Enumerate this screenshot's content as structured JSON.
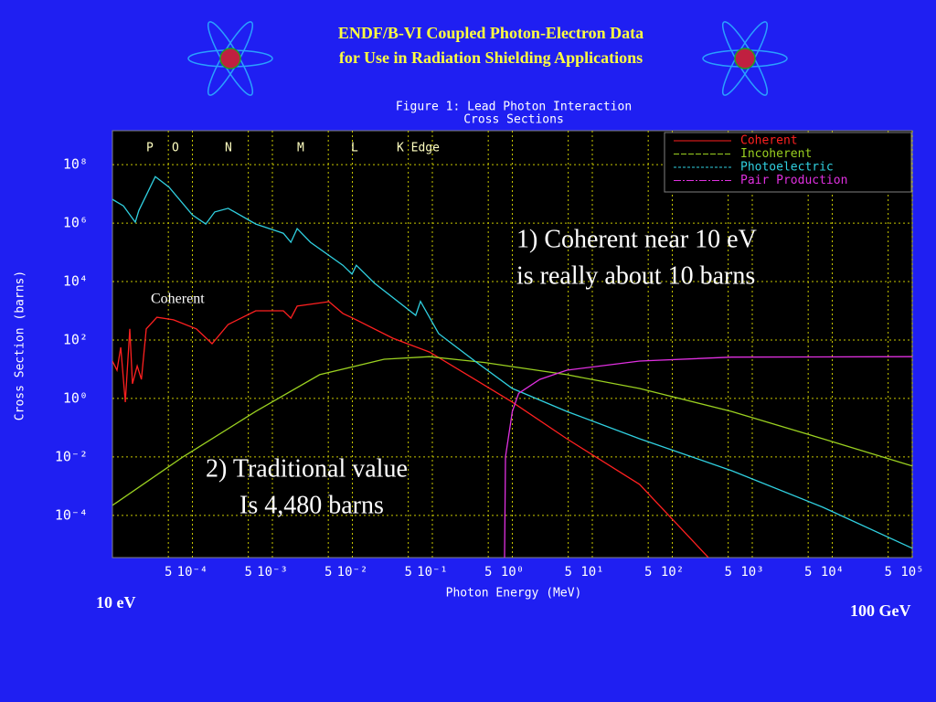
{
  "chart_data": {
    "type": "line",
    "slide_title": [
      "ENDF/B-VI Coupled Photon-Electron Data",
      "for Use in Radiation Shielding Applications"
    ],
    "title": [
      "Figure 1: Lead Photon Interaction",
      "Cross Sections"
    ],
    "xlabel": "Photon Energy (MeV)",
    "ylabel": "Cross Section (barns)",
    "xscale": "log",
    "yscale": "log",
    "grid": true,
    "legend": "upper right",
    "xlim": [
      1e-05,
      100000.0
    ],
    "ylim": [
      3.6e-06,
      1450000000.0
    ],
    "xticks": [
      {
        "value": 5e-05,
        "label": "5"
      },
      {
        "value": 0.0001,
        "label": "10⁻⁴"
      },
      {
        "value": 0.0005,
        "label": "5"
      },
      {
        "value": 0.001,
        "label": "10⁻³"
      },
      {
        "value": 0.005,
        "label": "5"
      },
      {
        "value": 0.01,
        "label": "10⁻²"
      },
      {
        "value": 0.05,
        "label": "5"
      },
      {
        "value": 0.1,
        "label": "10⁻¹"
      },
      {
        "value": 0.5,
        "label": "5"
      },
      {
        "value": 1,
        "label": "10⁰"
      },
      5,
      {
        "value": 10,
        "label": "10¹"
      },
      {
        "value": 50,
        "label": "5"
      },
      {
        "value": 100,
        "label": "10²"
      },
      {
        "value": 500,
        "label": "5"
      },
      {
        "value": 1000,
        "label": "10³"
      },
      {
        "value": 5000,
        "label": "5"
      },
      {
        "value": 10000,
        "label": "10⁴"
      },
      {
        "value": 50000,
        "label": "5"
      },
      {
        "value": 100000,
        "label": "10⁵"
      }
    ],
    "yticks": [
      {
        "value": 0.0001,
        "label": "10⁻⁴"
      },
      {
        "value": 0.01,
        "label": "10⁻²"
      },
      {
        "value": 1,
        "label": "10⁰"
      },
      {
        "value": 100,
        "label": "10²"
      },
      {
        "value": 10000,
        "label": "10⁴"
      },
      {
        "value": 1000000,
        "label": "10⁶"
      },
      {
        "value": 100000000,
        "label": "10⁸"
      }
    ],
    "edge_labels": [
      "P",
      "O",
      "N",
      "M",
      "L",
      "K Edge"
    ],
    "series": [
      {
        "name": "Coherent",
        "color": "#ff2020",
        "x": [
          1e-05,
          1.14e-05,
          1.27e-05,
          1.45e-05,
          1.65e-05,
          1.78e-05,
          2.04e-05,
          2.3e-05,
          2.65e-05,
          3.6e-05,
          5.8e-05,
          0.000112,
          0.000176,
          0.00028,
          0.00062,
          0.00137,
          0.0017,
          0.00204,
          0.0051,
          0.0076,
          0.0112,
          0.032,
          0.092,
          0.34,
          1,
          4.8,
          39,
          283
        ],
        "values": [
          19,
          9.3,
          56,
          0.75,
          240,
          3.2,
          13,
          4.5,
          240,
          600,
          490,
          240,
          75,
          340,
          1000,
          1000,
          560,
          1440,
          2050,
          810,
          490,
          115,
          39,
          4.5,
          0.75,
          0.042,
          0.00115,
          3.6e-06
        ]
      },
      {
        "name": "Incoherent",
        "color": "#9ad020",
        "x": [
          1e-05,
          7.6e-05,
          0.00062,
          0.0039,
          0.025,
          0.092,
          0.45,
          4.8,
          39,
          550,
          7600,
          100000.0
        ],
        "values": [
          0.00022,
          0.01,
          0.36,
          6.5,
          22,
          27,
          17,
          6.5,
          2.2,
          0.36,
          0.042,
          0.0049
        ]
      },
      {
        "name": "Photoelectric",
        "color": "#30d0e0",
        "x": [
          1e-05,
          1.37e-05,
          1.93e-05,
          2.14e-05,
          3.44e-05,
          5.1e-05,
          0.0001,
          0.000147,
          0.00019,
          0.00028,
          0.00062,
          0.00137,
          0.0017,
          0.00204,
          0.003,
          0.0076,
          0.0099,
          0.0112,
          0.019,
          0.062,
          0.071,
          0.12,
          0.34,
          1,
          4.8,
          39,
          550,
          7600,
          100000.0
        ],
        "values": [
          6500000.0,
          3900000.0,
          1070000.0,
          2700000.0,
          39000000.0,
          17000000.0,
          1900000.0,
          930000.0,
          2400000.0,
          3200000.0,
          930000.0,
          450000.0,
          220000.0,
          650000.0,
          220000.0,
          36000.0,
          18000.0,
          36000.0,
          8700,
          700,
          2100,
          165,
          19,
          2.2,
          0.36,
          0.042,
          0.0034,
          0.00019,
          7.5e-06
        ]
      },
      {
        "name": "Pair Production",
        "color": "#e030e0",
        "x": [
          0.8,
          0.82,
          1,
          1.2,
          2.2,
          4.8,
          39,
          550,
          100000.0
        ],
        "values": [
          3.6e-06,
          0.01,
          0.36,
          1.5,
          4.5,
          9.3,
          19,
          26,
          27
        ]
      }
    ],
    "annotations": [
      "Coherent",
      "1) Coherent near 10 eV",
      "is really about 10 barns",
      "2) Traditional value",
      "Is 4,480 barns",
      "10 eV",
      "100 GeV"
    ]
  }
}
